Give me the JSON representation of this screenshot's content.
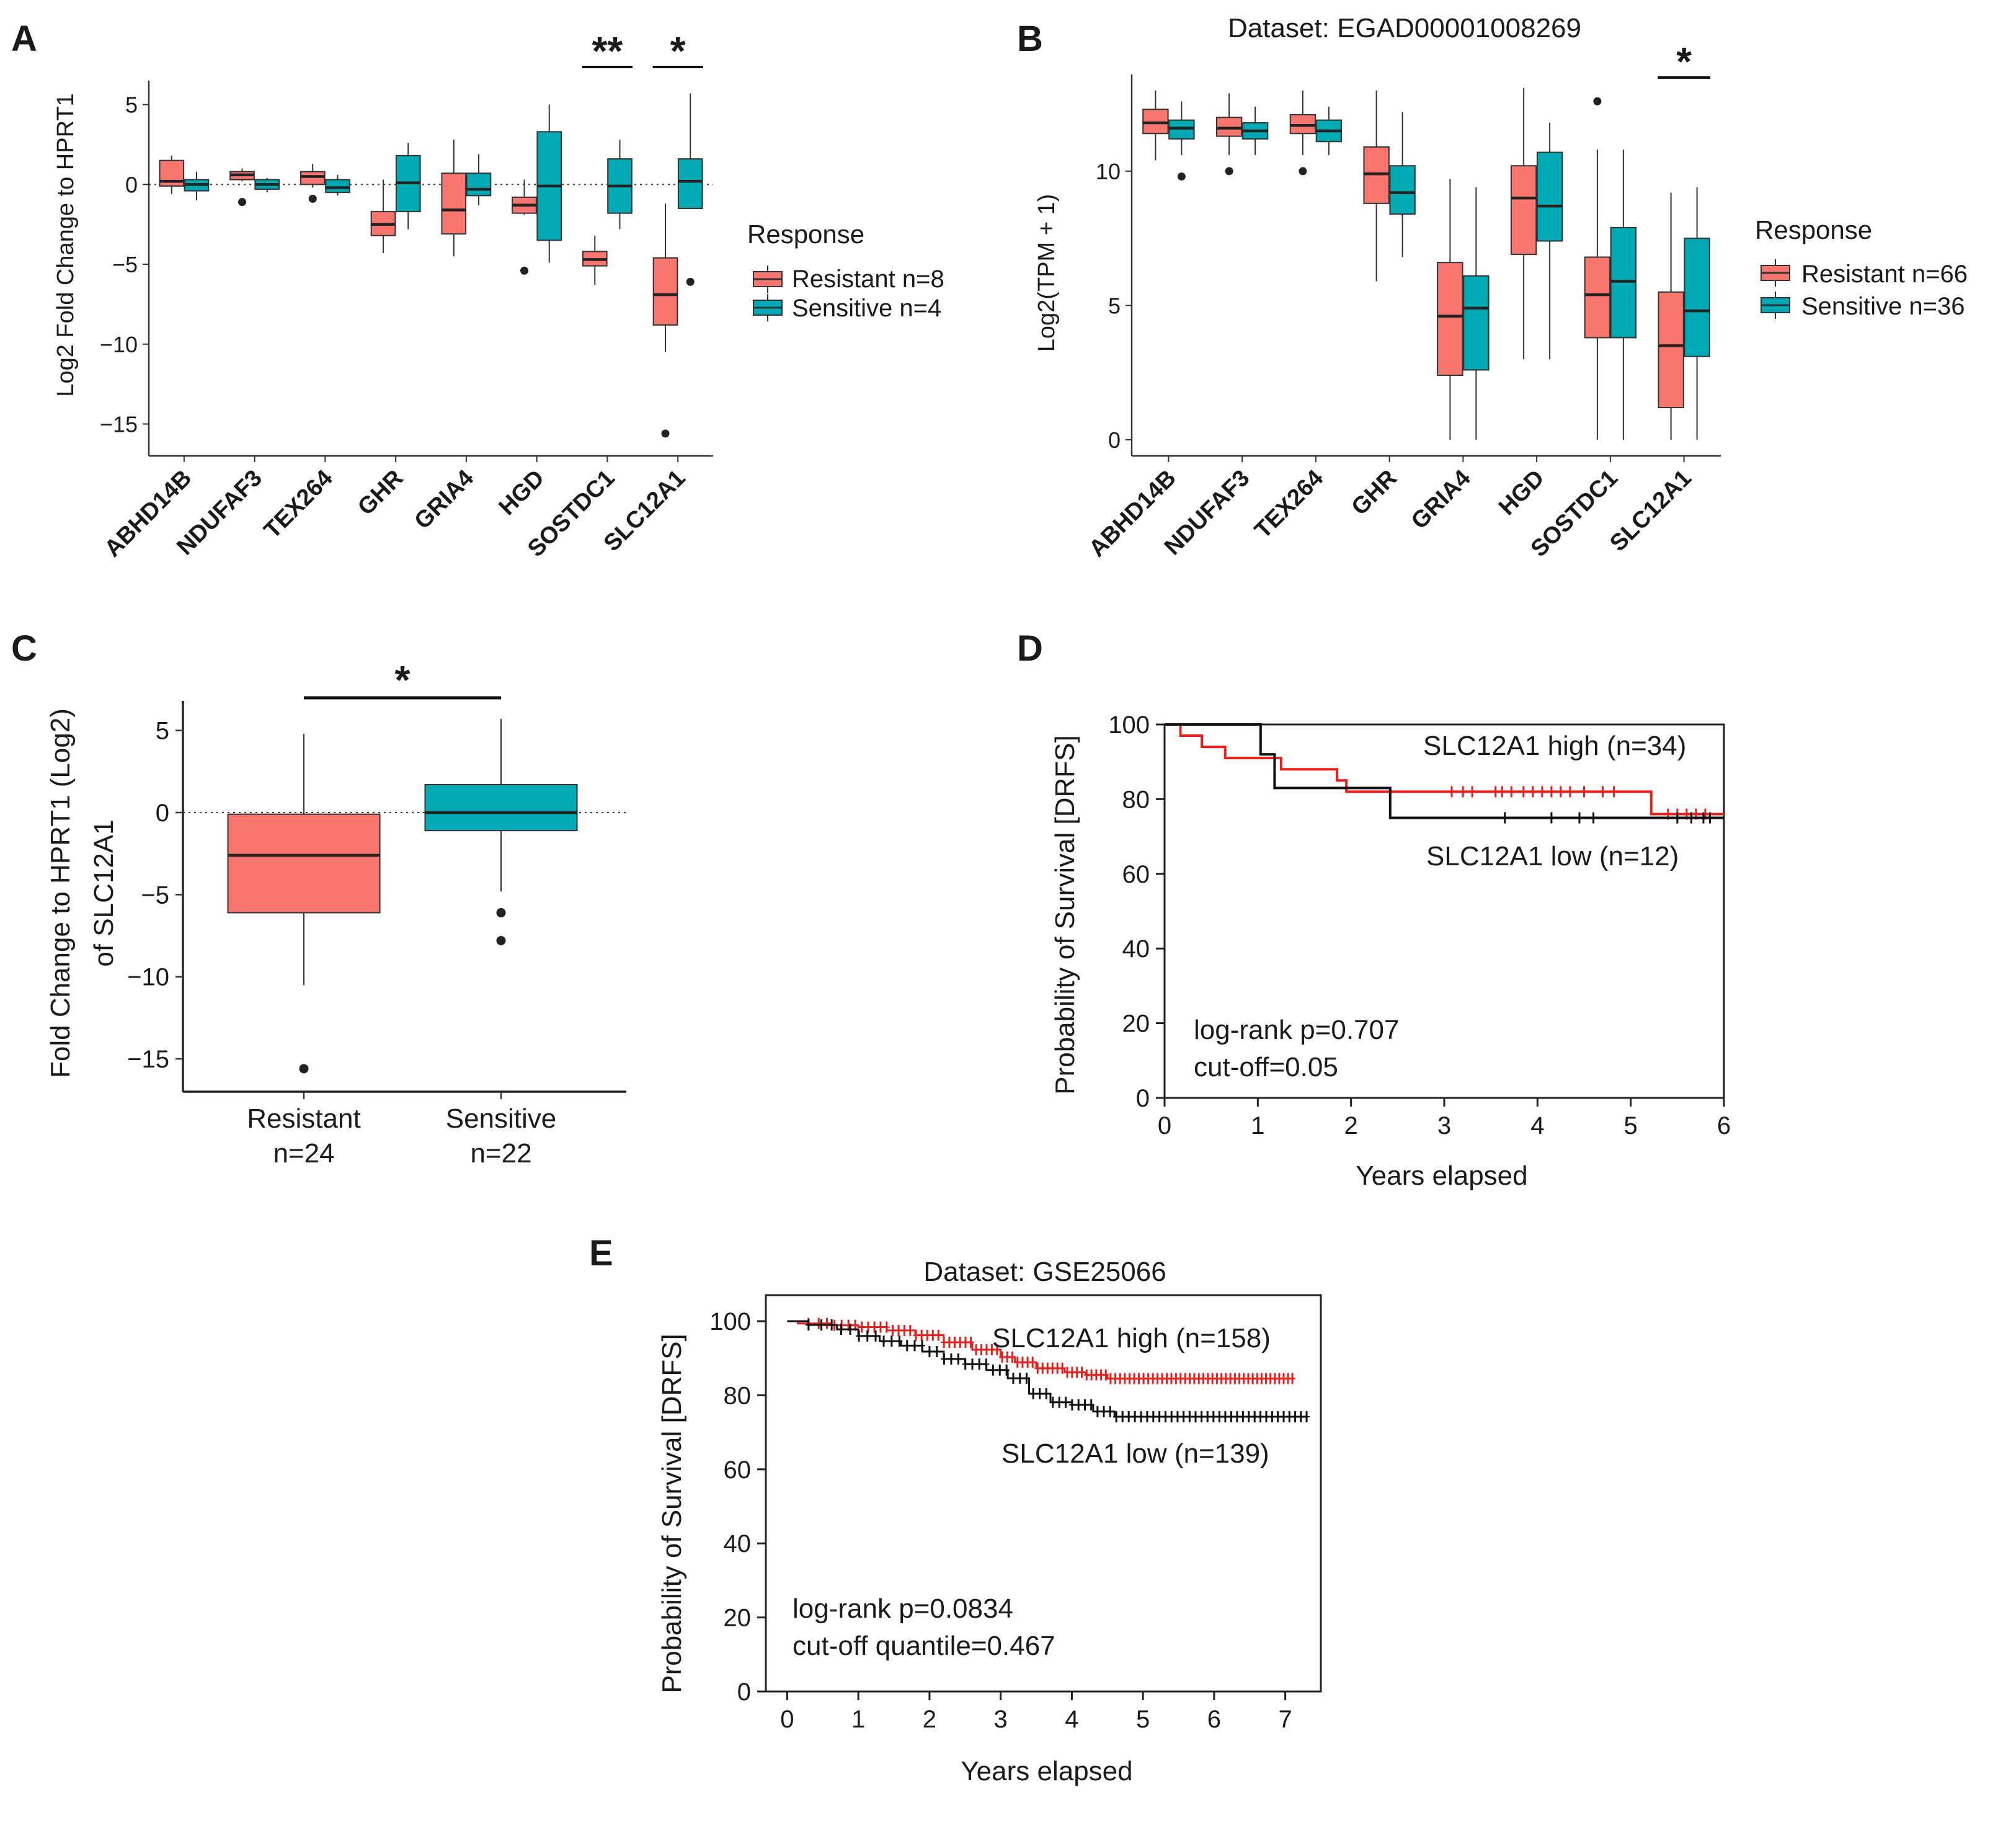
{
  "colors": {
    "resistant": "#F8766D",
    "sensitive": "#00A9B3",
    "high": "#E8201C",
    "low": "#111111"
  },
  "panels": {
    "A": "A",
    "B": "B",
    "C": "C",
    "D": "D",
    "E": "E"
  },
  "chart_data": [
    {
      "id": "A",
      "type": "boxplot",
      "ylabel": "Log2 Fold Change to HPRT1",
      "ylim": [
        -17,
        6.5
      ],
      "yticks": [
        5,
        0,
        -5,
        -10,
        -15
      ],
      "categories": [
        "ABHD14B",
        "NDUFAF3",
        "TEX264",
        "GHR",
        "GRIA4",
        "HGD",
        "SOSTDC1",
        "SLC12A1"
      ],
      "legend": {
        "title": "Response",
        "items": [
          "Resistant n=8",
          "Sensitive n=4"
        ]
      },
      "series": [
        {
          "name": "Resistant",
          "boxes": [
            [
              -0.6,
              -0.1,
              0.2,
              1.5,
              1.8
            ],
            [
              0.2,
              0.3,
              0.6,
              0.8,
              1.0
            ],
            [
              -0.2,
              0.0,
              0.5,
              0.8,
              1.3
            ],
            [
              -4.3,
              -3.2,
              -2.5,
              -1.7,
              0.3
            ],
            [
              -4.5,
              -3.1,
              -1.6,
              0.7,
              2.8
            ],
            [
              -1.9,
              -1.8,
              -1.3,
              -0.8,
              0.3
            ],
            [
              -6.3,
              -5.1,
              -4.7,
              -4.2,
              -3.2
            ],
            [
              -10.5,
              -8.8,
              -6.9,
              -4.6,
              -1.2
            ]
          ],
          "outliers": [
            [],
            [
              -1.1
            ],
            [
              -0.9
            ],
            [],
            [],
            [
              -5.4
            ],
            [],
            [
              -15.6
            ]
          ]
        },
        {
          "name": "Sensitive",
          "boxes": [
            [
              -1.0,
              -0.4,
              0.0,
              0.3,
              0.8
            ],
            [
              -0.5,
              -0.3,
              0.0,
              0.3,
              0.4
            ],
            [
              -0.7,
              -0.5,
              -0.2,
              0.3,
              0.6
            ],
            [
              -2.8,
              -1.7,
              0.1,
              1.8,
              2.6
            ],
            [
              -1.3,
              -0.7,
              -0.3,
              0.7,
              1.9
            ],
            [
              -4.9,
              -3.5,
              -0.1,
              3.3,
              5.0
            ],
            [
              -2.8,
              -1.8,
              -0.1,
              1.6,
              2.8
            ],
            [
              -1.5,
              -1.5,
              0.2,
              1.6,
              5.7
            ]
          ],
          "outliers": [
            [],
            [],
            [],
            [],
            [],
            [],
            [],
            [
              -6.1
            ]
          ]
        }
      ],
      "significance": [
        {
          "category": "SOSTDC1",
          "label": "**"
        },
        {
          "category": "SLC12A1",
          "label": "*"
        }
      ]
    },
    {
      "id": "B",
      "type": "boxplot",
      "title": "Dataset: EGAD00001008269",
      "ylabel": "Log2(TPM + 1)",
      "ylim": [
        -0.6,
        13.6
      ],
      "yticks": [
        10,
        5,
        0
      ],
      "categories": [
        "ABHD14B",
        "NDUFAF3",
        "TEX264",
        "GHR",
        "GRIA4",
        "HGD",
        "SOSTDC1",
        "SLC12A1"
      ],
      "legend": {
        "title": "Response",
        "items": [
          "Resistant n=66",
          "Sensitive n=36"
        ]
      },
      "series": [
        {
          "name": "Resistant",
          "boxes": [
            [
              10.4,
              11.4,
              11.8,
              12.3,
              13.0
            ],
            [
              10.6,
              11.3,
              11.6,
              12.0,
              12.9
            ],
            [
              10.6,
              11.4,
              11.7,
              12.1,
              13.0
            ],
            [
              5.9,
              8.8,
              9.9,
              10.9,
              13.0
            ],
            [
              0.0,
              2.4,
              4.6,
              6.6,
              9.7
            ],
            [
              3.0,
              6.9,
              9.0,
              10.2,
              13.1
            ],
            [
              0.0,
              3.8,
              5.4,
              6.8,
              10.8
            ],
            [
              0.0,
              1.2,
              3.5,
              5.5,
              9.2
            ]
          ],
          "outliers": [
            [],
            [
              10.0
            ],
            [
              10.0
            ],
            [],
            [],
            [],
            [
              12.6
            ],
            []
          ]
        },
        {
          "name": "Sensitive",
          "boxes": [
            [
              10.6,
              11.2,
              11.6,
              11.9,
              12.6
            ],
            [
              10.6,
              11.2,
              11.5,
              11.8,
              12.4
            ],
            [
              10.6,
              11.1,
              11.5,
              11.9,
              12.4
            ],
            [
              6.8,
              8.4,
              9.2,
              10.2,
              12.2
            ],
            [
              0.0,
              2.6,
              4.9,
              6.1,
              9.4
            ],
            [
              3.0,
              7.4,
              8.7,
              10.7,
              11.8
            ],
            [
              0.0,
              3.8,
              5.9,
              7.9,
              10.8
            ],
            [
              0.0,
              3.1,
              4.8,
              7.5,
              9.4
            ]
          ],
          "outliers": [
            [
              9.8
            ],
            [],
            [],
            [],
            [],
            [],
            [],
            []
          ]
        }
      ],
      "significance": [
        {
          "category": "SLC12A1",
          "label": "*"
        }
      ]
    },
    {
      "id": "C",
      "type": "boxplot",
      "ylabel": [
        "Fold Change to HPRT1 (Log2)",
        "of SLC12A1"
      ],
      "ylim": [
        -17,
        6.8
      ],
      "yticks": [
        5,
        0,
        -5,
        -10,
        -15
      ],
      "categories": [
        [
          "Resistant",
          "n=24"
        ],
        [
          "Sensitive",
          "n=22"
        ]
      ],
      "boxes": [
        {
          "name": "Resistant",
          "stats": [
            -10.5,
            -6.1,
            -2.6,
            -0.1,
            4.8
          ],
          "outliers": [
            -15.6
          ]
        },
        {
          "name": "Sensitive",
          "stats": [
            -4.8,
            -1.1,
            0.0,
            1.7,
            5.7
          ],
          "outliers": [
            -6.1,
            -7.8
          ]
        }
      ],
      "significance": [
        {
          "label": "*"
        }
      ]
    },
    {
      "id": "D",
      "type": "kaplan-meier",
      "xlabel": "Years elapsed",
      "ylabel": "Probability of Survival [DRFS]",
      "xlim": [
        0,
        6
      ],
      "ylim": [
        0,
        100
      ],
      "xticks": [
        0,
        1,
        2,
        3,
        4,
        5,
        6
      ],
      "yticks": [
        0,
        20,
        40,
        60,
        80,
        100
      ],
      "series": [
        {
          "name": "high",
          "label": "SLC12A1 high (n=34)",
          "x": [
            0,
            0.17,
            0.17,
            0.4,
            0.4,
            0.65,
            0.65,
            1.25,
            1.25,
            1.85,
            1.85,
            1.95,
            1.95,
            2.1,
            2.1,
            5.22,
            5.22,
            6.0
          ],
          "y": [
            100,
            100,
            97,
            97,
            94,
            94,
            91,
            91,
            88,
            88,
            85,
            85,
            82,
            82,
            82,
            82,
            76,
            76
          ],
          "censors_x": [
            3.08,
            3.2,
            3.3,
            3.55,
            3.62,
            3.72,
            3.85,
            3.95,
            4.05,
            4.15,
            4.25,
            4.35,
            4.5,
            4.7,
            4.82,
            5.4,
            5.5,
            5.6,
            5.7,
            5.8
          ],
          "censors_y": [
            82,
            82,
            82,
            82,
            82,
            82,
            82,
            82,
            82,
            82,
            82,
            82,
            82,
            82,
            82,
            76,
            76,
            76,
            76,
            76
          ]
        },
        {
          "name": "low",
          "label": "SLC12A1 low (n=12)",
          "x": [
            0,
            1.03,
            1.03,
            1.18,
            1.18,
            2.42,
            2.42,
            6.0
          ],
          "y": [
            100,
            100,
            92,
            92,
            83,
            83,
            75,
            75
          ],
          "censors_x": [
            3.65,
            4.15,
            4.45,
            4.6,
            5.5,
            5.65,
            5.78,
            5.85
          ],
          "censors_y": [
            75,
            75,
            75,
            75,
            75,
            75,
            75,
            75
          ]
        }
      ],
      "annotations": [
        "log-rank p=0.707",
        "cut-off=0.05"
      ]
    },
    {
      "id": "E",
      "type": "kaplan-meier",
      "title": "Dataset: GSE25066",
      "xlabel": "Years elapsed",
      "ylabel": "Probability of Survival  [DRFS]",
      "xlim": [
        -0.3,
        7.5
      ],
      "ylim": [
        0,
        100
      ],
      "xticks": [
        0,
        1,
        2,
        3,
        4,
        5,
        6,
        7
      ],
      "yticks": [
        0,
        20,
        40,
        60,
        80,
        100
      ],
      "series": [
        {
          "name": "high",
          "label": "SLC12A1 high (n=158)",
          "x": [
            0,
            0.15,
            0.6,
            1.0,
            1.4,
            1.8,
            2.2,
            2.6,
            3.0,
            3.2,
            3.5,
            3.9,
            4.2,
            4.5,
            7.1
          ],
          "y": [
            100,
            99.4,
            98.9,
            98.4,
            97.5,
            96.2,
            94.3,
            92.3,
            90.3,
            88.9,
            87.3,
            86.2,
            85.5,
            84.5,
            84.5
          ],
          "censors_range": [
            0.3,
            7.1
          ],
          "censors_count": 95
        },
        {
          "name": "low",
          "label": "SLC12A1 low (n=139)",
          "x": [
            0,
            0.3,
            0.7,
            1.0,
            1.3,
            1.6,
            1.9,
            2.2,
            2.5,
            2.8,
            3.1,
            3.4,
            3.7,
            4.0,
            4.3,
            4.6,
            7.3
          ],
          "y": [
            100,
            99,
            97.8,
            96,
            94.6,
            93.4,
            91.8,
            89.8,
            88.4,
            86.8,
            84.6,
            80.4,
            78.1,
            77.4,
            75.6,
            74.2,
            74.2
          ],
          "censors_range": [
            0.3,
            7.3
          ],
          "censors_count": 75
        }
      ],
      "annotations": [
        "log-rank p=0.0834",
        "cut-off quantile=0.467"
      ]
    }
  ]
}
